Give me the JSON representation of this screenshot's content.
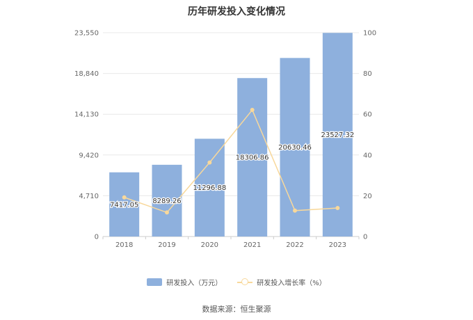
{
  "chart_data": {
    "type": "bar",
    "title": "历年研发投入变化情况",
    "categories": [
      "2018",
      "2019",
      "2020",
      "2021",
      "2022",
      "2023"
    ],
    "series": [
      {
        "name": "研发投入（万元）",
        "type": "bar",
        "axis": "left",
        "values": [
          7417.05,
          8289.26,
          11296.88,
          18306.86,
          20630.46,
          23527.32
        ],
        "labels": [
          "7417.05",
          "8289.26",
          "11296.88",
          "18306.86",
          "20630.46",
          "23527.32"
        ]
      },
      {
        "name": "研发投入增长率（%）",
        "type": "line",
        "axis": "right",
        "values": [
          19.2,
          11.8,
          36.3,
          62.1,
          12.7,
          14.0
        ]
      }
    ],
    "y_left": {
      "min": 0,
      "max": 23550,
      "ticks": [
        0,
        4710,
        9420,
        14130,
        18840,
        23550
      ],
      "tick_labels": [
        "0",
        "4,710",
        "9,420",
        "14,130",
        "18,840",
        "23,550"
      ]
    },
    "y_right": {
      "min": 0,
      "max": 100,
      "ticks": [
        0,
        20,
        40,
        60,
        80,
        100
      ],
      "tick_labels": [
        "0",
        "20",
        "40",
        "60",
        "80",
        "100"
      ]
    },
    "grid": true,
    "legend_position": "bottom"
  },
  "legend": {
    "bar_label": "研发投入（万元）",
    "line_label": "研发投入增长率（%）"
  },
  "source": "数据来源：恒生聚源",
  "colors": {
    "bar": "#8eb0dd",
    "line": "#f8d89b",
    "grid": "#e8e8e8",
    "axis_text": "#666666",
    "label_text": "#333333"
  }
}
